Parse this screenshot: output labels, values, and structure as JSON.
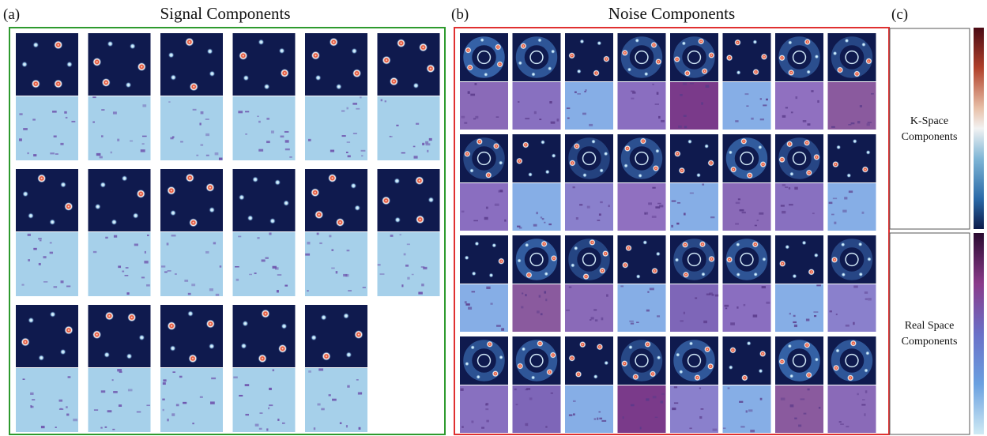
{
  "panel_a": {
    "label": "(a)",
    "title": "Signal Components"
  },
  "panel_b": {
    "label": "(b)",
    "title": "Noise Components"
  },
  "panel_c": {
    "label": "(c)",
    "k_space_label": [
      "K-Space",
      "Components"
    ],
    "real_space_label": [
      "Real Space",
      "Components"
    ]
  }
}
